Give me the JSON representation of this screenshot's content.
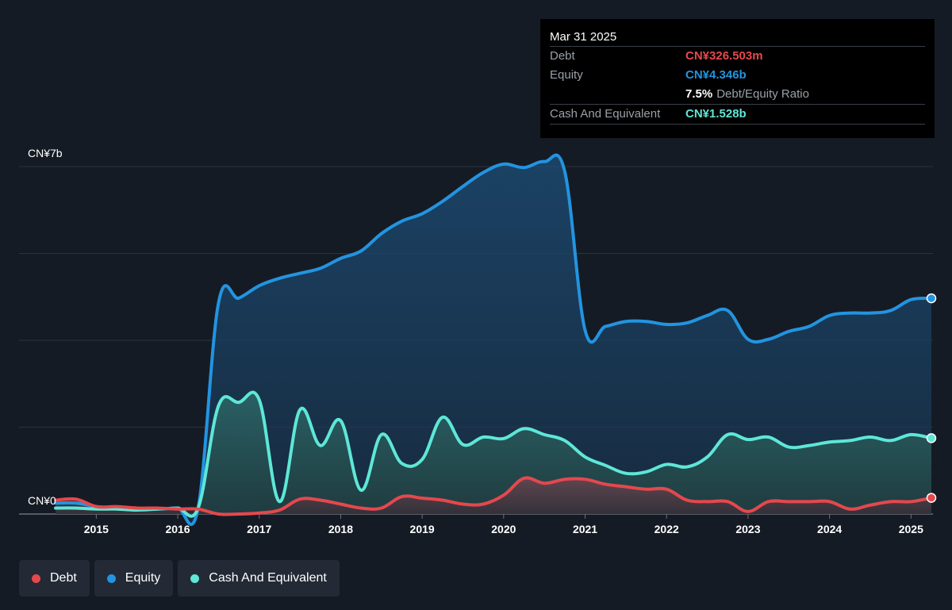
{
  "chart_data": {
    "type": "area",
    "y_unit_labels": {
      "top": "CN¥7b",
      "bottom": "CN¥0"
    },
    "ylim": [
      0,
      7
    ],
    "xlim": [
      2014.5,
      2025.25
    ],
    "x_ticks": [
      "2015",
      "2016",
      "2017",
      "2018",
      "2019",
      "2020",
      "2021",
      "2022",
      "2023",
      "2024",
      "2025"
    ],
    "grid": true,
    "series": [
      {
        "name": "Equity",
        "color": "#2394e0",
        "unit": "CN¥ billions",
        "points": [
          [
            2014.5,
            0.22
          ],
          [
            2014.75,
            0.22
          ],
          [
            2015.0,
            0.15
          ],
          [
            2015.25,
            0.12
          ],
          [
            2015.5,
            0.1
          ],
          [
            2015.75,
            0.1
          ],
          [
            2016.0,
            0.12
          ],
          [
            2016.25,
            0.12
          ],
          [
            2016.5,
            4.25
          ],
          [
            2016.75,
            4.35
          ],
          [
            2017.0,
            4.6
          ],
          [
            2017.25,
            4.75
          ],
          [
            2017.5,
            4.85
          ],
          [
            2017.75,
            4.95
          ],
          [
            2018.0,
            5.15
          ],
          [
            2018.25,
            5.3
          ],
          [
            2018.5,
            5.65
          ],
          [
            2018.75,
            5.9
          ],
          [
            2019.0,
            6.05
          ],
          [
            2019.25,
            6.3
          ],
          [
            2019.5,
            6.6
          ],
          [
            2019.75,
            6.88
          ],
          [
            2020.0,
            7.05
          ],
          [
            2020.25,
            6.98
          ],
          [
            2020.5,
            7.1
          ],
          [
            2020.75,
            6.9
          ],
          [
            2021.0,
            3.7
          ],
          [
            2021.25,
            3.78
          ],
          [
            2021.5,
            3.88
          ],
          [
            2021.75,
            3.88
          ],
          [
            2022.0,
            3.82
          ],
          [
            2022.25,
            3.85
          ],
          [
            2022.5,
            4.0
          ],
          [
            2022.75,
            4.1
          ],
          [
            2023.0,
            3.52
          ],
          [
            2023.25,
            3.52
          ],
          [
            2023.5,
            3.68
          ],
          [
            2023.75,
            3.78
          ],
          [
            2024.0,
            4.0
          ],
          [
            2024.25,
            4.05
          ],
          [
            2024.5,
            4.05
          ],
          [
            2024.75,
            4.1
          ],
          [
            2025.0,
            4.32
          ],
          [
            2025.25,
            4.346
          ]
        ]
      },
      {
        "name": "Cash And Equivalent",
        "color": "#5ee7d6",
        "unit": "CN¥ billions",
        "points": [
          [
            2014.5,
            0.12
          ],
          [
            2014.75,
            0.12
          ],
          [
            2015.0,
            0.1
          ],
          [
            2015.25,
            0.1
          ],
          [
            2015.5,
            0.08
          ],
          [
            2015.75,
            0.1
          ],
          [
            2016.0,
            0.12
          ],
          [
            2016.25,
            0.12
          ],
          [
            2016.5,
            2.18
          ],
          [
            2016.75,
            2.25
          ],
          [
            2017.0,
            2.3
          ],
          [
            2017.25,
            0.25
          ],
          [
            2017.5,
            2.1
          ],
          [
            2017.75,
            1.38
          ],
          [
            2018.0,
            1.88
          ],
          [
            2018.25,
            0.48
          ],
          [
            2018.5,
            1.6
          ],
          [
            2018.75,
            1.02
          ],
          [
            2019.0,
            1.1
          ],
          [
            2019.25,
            1.95
          ],
          [
            2019.5,
            1.4
          ],
          [
            2019.75,
            1.55
          ],
          [
            2020.0,
            1.52
          ],
          [
            2020.25,
            1.72
          ],
          [
            2020.5,
            1.6
          ],
          [
            2020.75,
            1.48
          ],
          [
            2021.0,
            1.15
          ],
          [
            2021.25,
            0.98
          ],
          [
            2021.5,
            0.82
          ],
          [
            2021.75,
            0.85
          ],
          [
            2022.0,
            1.0
          ],
          [
            2022.25,
            0.95
          ],
          [
            2022.5,
            1.15
          ],
          [
            2022.75,
            1.6
          ],
          [
            2023.0,
            1.5
          ],
          [
            2023.25,
            1.55
          ],
          [
            2023.5,
            1.35
          ],
          [
            2023.75,
            1.38
          ],
          [
            2024.0,
            1.45
          ],
          [
            2024.25,
            1.48
          ],
          [
            2024.5,
            1.55
          ],
          [
            2024.75,
            1.48
          ],
          [
            2025.0,
            1.6
          ],
          [
            2025.25,
            1.528
          ]
        ]
      },
      {
        "name": "Debt",
        "color": "#e5484d",
        "unit": "CN¥ billions",
        "points": [
          [
            2014.5,
            0.28
          ],
          [
            2014.75,
            0.3
          ],
          [
            2015.0,
            0.15
          ],
          [
            2015.25,
            0.15
          ],
          [
            2015.5,
            0.12
          ],
          [
            2015.75,
            0.12
          ],
          [
            2016.0,
            0.1
          ],
          [
            2016.25,
            0.1
          ],
          [
            2016.5,
            0.0
          ],
          [
            2016.75,
            0.0
          ],
          [
            2017.0,
            0.02
          ],
          [
            2017.25,
            0.08
          ],
          [
            2017.5,
            0.3
          ],
          [
            2017.75,
            0.28
          ],
          [
            2018.0,
            0.2
          ],
          [
            2018.25,
            0.12
          ],
          [
            2018.5,
            0.12
          ],
          [
            2018.75,
            0.35
          ],
          [
            2019.0,
            0.32
          ],
          [
            2019.25,
            0.28
          ],
          [
            2019.5,
            0.2
          ],
          [
            2019.75,
            0.2
          ],
          [
            2020.0,
            0.38
          ],
          [
            2020.25,
            0.72
          ],
          [
            2020.5,
            0.62
          ],
          [
            2020.75,
            0.7
          ],
          [
            2021.0,
            0.7
          ],
          [
            2021.25,
            0.6
          ],
          [
            2021.5,
            0.55
          ],
          [
            2021.75,
            0.5
          ],
          [
            2022.0,
            0.5
          ],
          [
            2022.25,
            0.28
          ],
          [
            2022.5,
            0.25
          ],
          [
            2022.75,
            0.25
          ],
          [
            2023.0,
            0.05
          ],
          [
            2023.25,
            0.25
          ],
          [
            2023.5,
            0.25
          ],
          [
            2023.75,
            0.25
          ],
          [
            2024.0,
            0.25
          ],
          [
            2024.25,
            0.1
          ],
          [
            2024.5,
            0.18
          ],
          [
            2024.75,
            0.25
          ],
          [
            2025.0,
            0.25
          ],
          [
            2025.25,
            0.3265
          ]
        ]
      }
    ]
  },
  "tooltip": {
    "date": "Mar 31 2025",
    "debt_label": "Debt",
    "debt_value": "CN¥326.503m",
    "equity_label": "Equity",
    "equity_value": "CN¥4.346b",
    "ratio_value": "7.5%",
    "ratio_label": "Debt/Equity Ratio",
    "cash_label": "Cash And Equivalent",
    "cash_value": "CN¥1.528b"
  },
  "legend": {
    "debt": "Debt",
    "equity": "Equity",
    "cash": "Cash And Equivalent"
  },
  "colors": {
    "debt": "#e5484d",
    "equity": "#2394e0",
    "cash": "#5ee7d6",
    "background": "#151b24"
  }
}
